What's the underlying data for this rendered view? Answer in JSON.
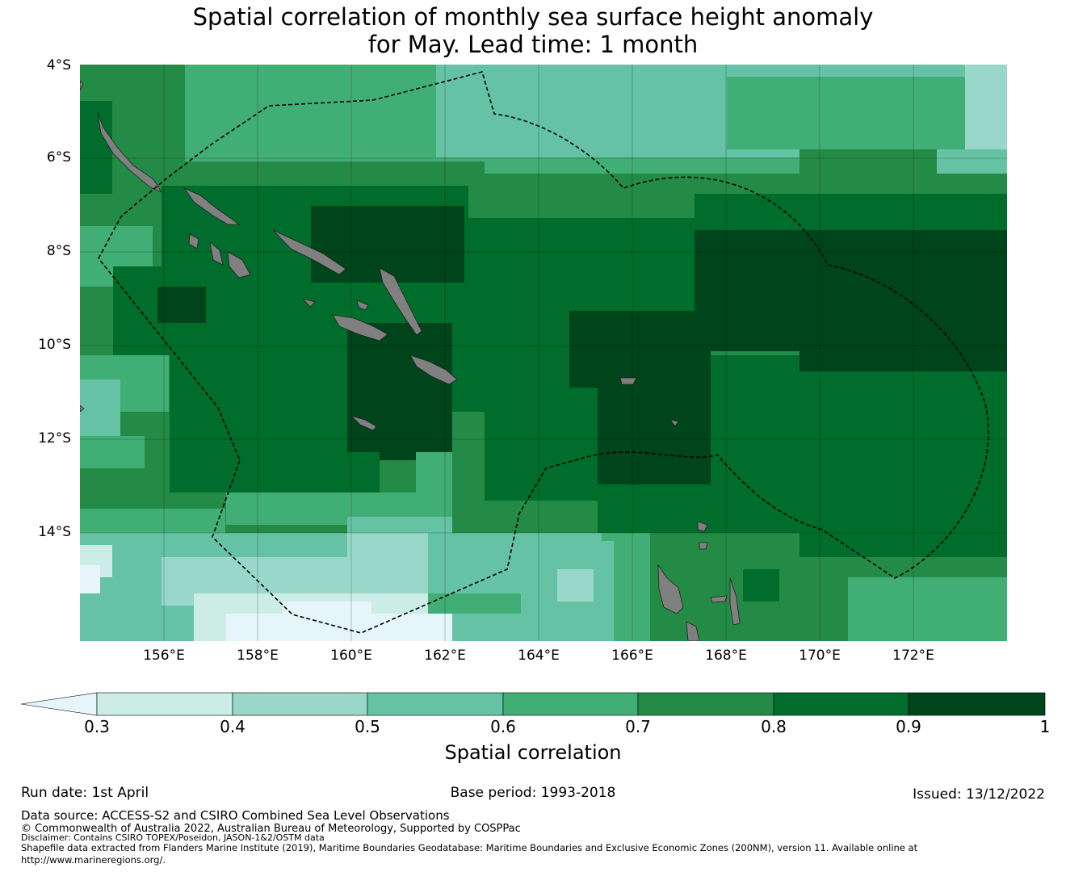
{
  "title_line1": "Spatial correlation of monthly sea surface height anomaly",
  "title_line2": "for May. Lead time: 1 month",
  "lat_labels": [
    "4°S",
    "6°S",
    "8°S",
    "10°S",
    "12°S",
    "14°S"
  ],
  "lon_labels": [
    "156°E",
    "158°E",
    "160°E",
    "162°E",
    "164°E",
    "166°E",
    "168°E",
    "170°E",
    "172°E"
  ],
  "colorbar": {
    "title": "Spatial correlation",
    "tick_labels": [
      "0.3",
      "0.4",
      "0.5",
      "0.6",
      "0.7",
      "0.8",
      "0.9",
      "1"
    ],
    "colors": [
      "#e5f5f9",
      "#ccece6",
      "#99d8c9",
      "#66c2a4",
      "#41ae76",
      "#238b45",
      "#006d2c",
      "#00441b"
    ]
  },
  "land_color": "#808080",
  "run_date": "Run date: 1st April",
  "base_period": "Base period: 1993-2018",
  "issued": "Issued: 13/12/2022",
  "data_source": "Data source: ACCESS-S2 and CSIRO Combined Sea Level Observations",
  "copyright": "© Commonwealth of Australia 2022, Australian Bureau of Meteorology, Supported by COSPPac",
  "disclaimer": "Disclaimer: Contains CSIRO TOPEX/Poseidon, JASON-1&2/OSTM data",
  "shapefile_line1": "Shapefile data extracted from Flanders Marine Institute (2019), Maritime Boundaries Geodatabase: Maritime Boundaries and Exclusive Economic Zones (200NM), version 11. Available online at",
  "shapefile_line2": "http://www.marineregions.org/."
}
